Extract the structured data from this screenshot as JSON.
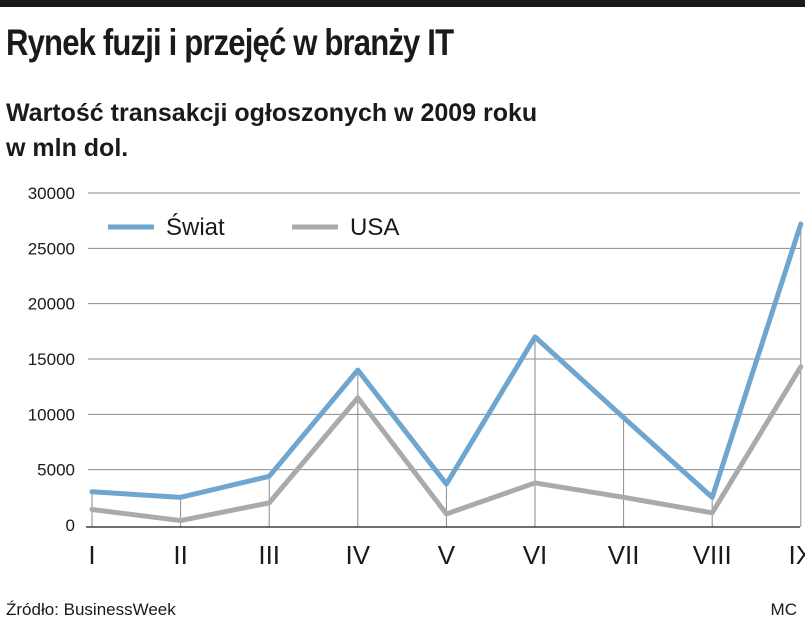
{
  "header": {
    "title": "Rynek fuzji i przejęć w branży IT",
    "subtitle_line1": "Wartość transakcji ogłoszonych w 2009 roku",
    "subtitle_line2": "w mln dol."
  },
  "footer": {
    "source": "Źródło: BusinessWeek",
    "author": "MC"
  },
  "chart_data": {
    "type": "line",
    "categories": [
      "I",
      "II",
      "III",
      "IV",
      "V",
      "VI",
      "VII",
      "VIII",
      "IX"
    ],
    "series": [
      {
        "name": "Świat",
        "color": "#6ea6cf",
        "values": [
          3000,
          2500,
          4400,
          14000,
          3700,
          17000,
          9700,
          2500,
          27200
        ]
      },
      {
        "name": "USA",
        "color": "#a8abad",
        "values": [
          1400,
          400,
          2000,
          11500,
          1000,
          3800,
          2500,
          1100,
          14300
        ]
      }
    ],
    "yticks": [
      0,
      5000,
      10000,
      15000,
      20000,
      25000,
      30000
    ],
    "ylim": [
      0,
      30000
    ],
    "grid": true,
    "legend_position": "top-left"
  }
}
